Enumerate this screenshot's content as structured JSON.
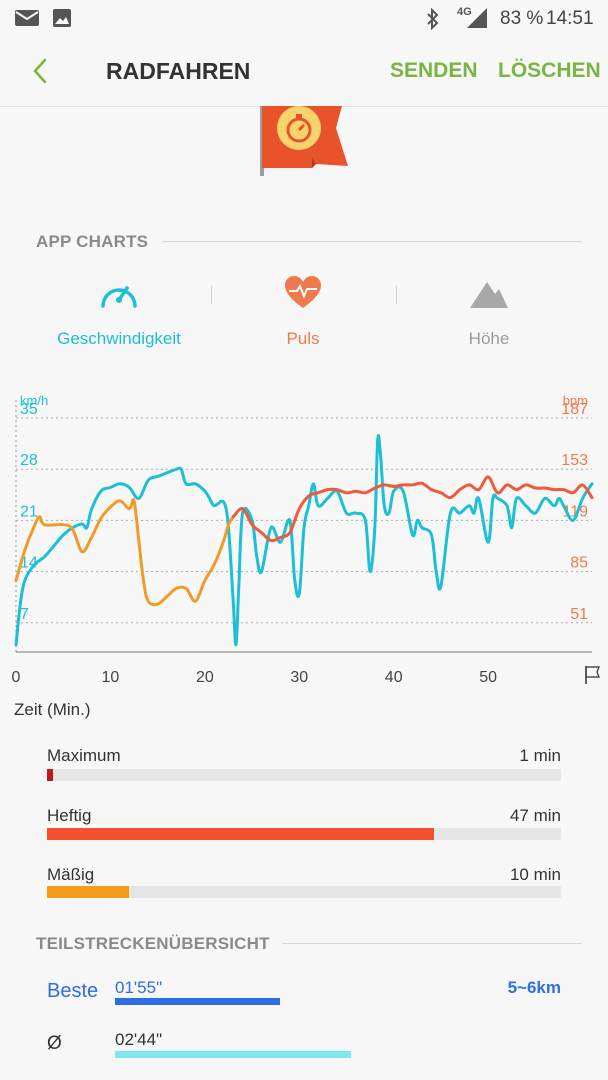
{
  "status_bar": {
    "network": "4G",
    "battery": "83 %",
    "time": "14:51"
  },
  "app_bar": {
    "title": "RADFAHREN",
    "send_label": "SENDEN",
    "delete_label": "LÖSCHEN"
  },
  "charts_section": {
    "header": "APP CHARTS"
  },
  "tabs": [
    {
      "label": "Geschwindigkeit",
      "icon": "speedometer-icon",
      "color": "#1cbfd6"
    },
    {
      "label": "Puls",
      "icon": "heart-icon",
      "color": "#f07a4e"
    },
    {
      "label": "Höhe",
      "icon": "mountain-icon",
      "color": "#9a9a9a"
    }
  ],
  "chart_data": {
    "type": "line",
    "xlabel": "Zeit (Min.)",
    "x_ticks": [
      "0",
      "10",
      "20",
      "30",
      "40",
      "50"
    ],
    "xlim": [
      0,
      61
    ],
    "left_axis": {
      "unit": "km/h",
      "ticks": [
        "35",
        "28",
        "21",
        "14",
        "7"
      ],
      "range": [
        3,
        35
      ],
      "color": "#1cbfd6"
    },
    "right_axis": {
      "unit": "bpm",
      "ticks": [
        "187",
        "153",
        "119",
        "85",
        "51"
      ],
      "range": [
        40,
        187
      ],
      "color": "#f07a4e"
    },
    "grid": true,
    "series": [
      {
        "color": "#1cbfd6",
        "axis": "left",
        "x": [
          0,
          0.5,
          1,
          2,
          3,
          4,
          5,
          6,
          7,
          7.5,
          8,
          9,
          10,
          11,
          12,
          13,
          14,
          15,
          16,
          17,
          17.5,
          18,
          19,
          20,
          20.5,
          21,
          22,
          22.5,
          23,
          23.3,
          23.6,
          24,
          25,
          25.5,
          26,
          27,
          28,
          29,
          29.5,
          30,
          30.5,
          31,
          31.5,
          32,
          33,
          34,
          35,
          36,
          37,
          37.5,
          38,
          38.3,
          38.6,
          39,
          39.5,
          40,
          41,
          42,
          42.5,
          43,
          44,
          44.5,
          45,
          46,
          47,
          48,
          48.5,
          49,
          50,
          50.5,
          51,
          52,
          52.5,
          53,
          54,
          55,
          56,
          57,
          57.5,
          58,
          59,
          60,
          61
        ],
        "y": [
          4,
          10,
          13,
          15,
          16,
          17.5,
          19,
          20,
          20.5,
          20,
          22.5,
          25,
          25.5,
          26,
          25.5,
          24,
          26.5,
          27,
          27.5,
          28,
          28,
          26,
          26,
          25,
          24,
          23,
          23.5,
          20,
          10,
          4,
          12,
          22,
          21,
          16,
          14,
          20,
          18,
          21,
          13,
          11,
          20,
          23,
          26,
          23,
          24,
          25,
          22,
          22,
          21,
          14,
          20,
          32,
          30,
          23,
          22,
          25,
          25,
          19,
          21,
          20,
          19,
          14,
          12,
          22,
          22,
          23,
          22,
          24,
          18,
          24,
          24,
          23,
          20,
          24,
          23,
          22,
          24,
          23,
          24,
          23,
          21,
          24,
          26
        ]
      },
      {
        "color": "#f09a2a",
        "axis": "right",
        "x": [
          0,
          1,
          2,
          2.5,
          3,
          5,
          6,
          7,
          8,
          9,
          10,
          11,
          12,
          12.5,
          13,
          13.5,
          14,
          15,
          16,
          17,
          18,
          19,
          20,
          21,
          22,
          22.5,
          23
        ],
        "y": [
          85,
          105,
          120,
          125,
          120,
          120,
          117,
          103,
          112,
          124,
          131,
          135,
          130,
          135,
          110,
          85,
          72,
          70,
          75,
          80,
          80,
          72,
          85,
          95,
          110,
          120,
          125
        ]
      },
      {
        "color": "#f05a3a",
        "axis": "right",
        "x": [
          23,
          24,
          25,
          26,
          27,
          28,
          29,
          30,
          31,
          32,
          33,
          34,
          35,
          36,
          37,
          38,
          39,
          40,
          41,
          42,
          43,
          44,
          45,
          46,
          47,
          48,
          49,
          50,
          51,
          52,
          53,
          54,
          55,
          56,
          57,
          58,
          59,
          60,
          61
        ],
        "y": [
          125,
          130,
          120,
          115,
          110,
          112,
          115,
          130,
          138,
          140,
          142,
          142,
          140,
          141,
          140,
          143,
          145,
          144,
          145,
          145,
          146,
          142,
          140,
          137,
          142,
          145,
          142,
          150,
          140,
          145,
          142,
          145,
          143,
          143,
          142,
          142,
          140,
          145,
          137
        ]
      }
    ]
  },
  "zones": [
    {
      "label": "Maximum",
      "value": "1 min",
      "fraction": 0.012,
      "color": "#c0171b"
    },
    {
      "label": "Heftig",
      "value": "47 min",
      "fraction": 0.753,
      "color": "#f4502f"
    },
    {
      "label": "Mäßig",
      "value": "10 min",
      "fraction": 0.159,
      "color": "#f59c1a"
    }
  ],
  "splits_section": {
    "header": "TEILSTRECKENÜBERSICHT"
  },
  "splits": [
    {
      "label": "Beste",
      "time": "01'55\"",
      "distance": "5~6km",
      "fraction": 0.37,
      "color": "#2d6fe0"
    },
    {
      "label": "Ø",
      "time": "02'44\"",
      "distance": "",
      "fraction": 0.53,
      "color": "#7fe6f2"
    }
  ]
}
